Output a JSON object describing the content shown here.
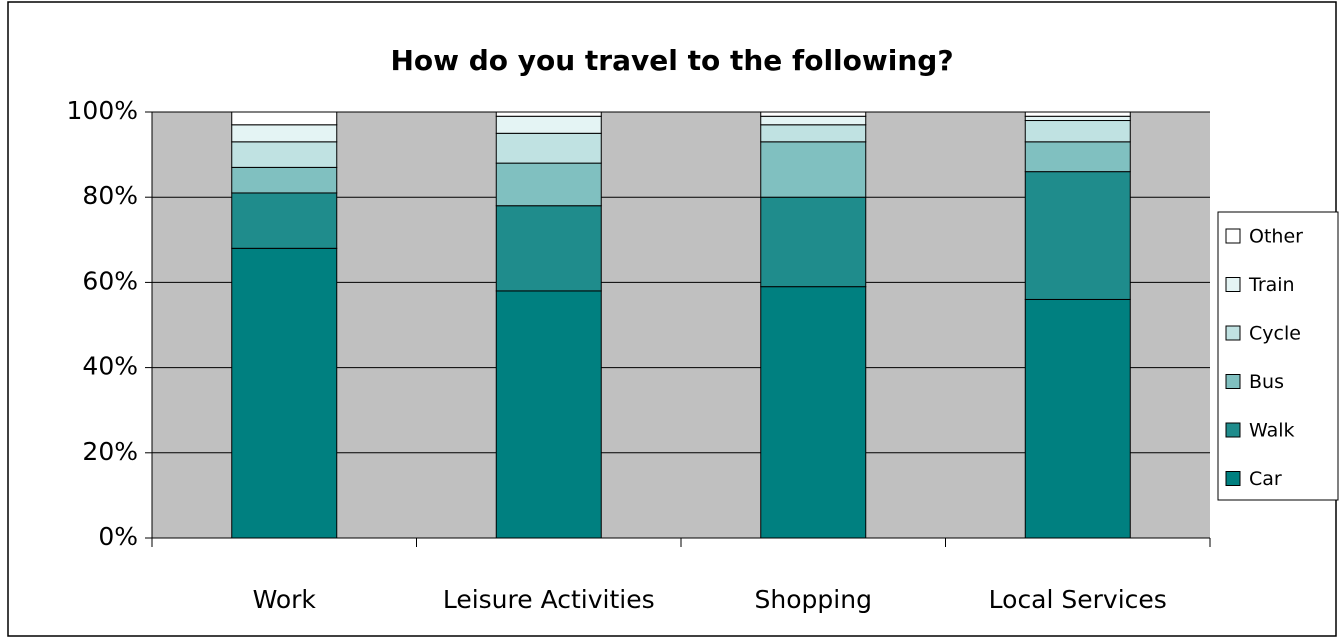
{
  "chart_data": {
    "type": "bar",
    "stacked": true,
    "title": "How do you travel to the following?",
    "categories": [
      "Work",
      "Leisure Activities",
      "Shopping",
      "Local Services"
    ],
    "series": [
      {
        "name": "Car",
        "color": "#008080",
        "values": [
          68,
          58,
          59,
          56
        ]
      },
      {
        "name": "Walk",
        "color": "#1f8c8c",
        "values": [
          13,
          20,
          21,
          30
        ]
      },
      {
        "name": "Bus",
        "color": "#80c0c0",
        "values": [
          6,
          10,
          13,
          7
        ]
      },
      {
        "name": "Cycle",
        "color": "#c0e2e2",
        "values": [
          6,
          7,
          4,
          5
        ]
      },
      {
        "name": "Train",
        "color": "#e4f4f4",
        "values": [
          4,
          4,
          2,
          1
        ]
      },
      {
        "name": "Other",
        "color": "#ffffff",
        "values": [
          3,
          1,
          1,
          1
        ]
      }
    ],
    "ylim": [
      0,
      100
    ],
    "yticks": [
      {
        "value": 0,
        "label": "0%"
      },
      {
        "value": 20,
        "label": "20%"
      },
      {
        "value": 40,
        "label": "40%"
      },
      {
        "value": 60,
        "label": "60%"
      },
      {
        "value": 80,
        "label": "80%"
      },
      {
        "value": 100,
        "label": "100%"
      }
    ],
    "grid": true,
    "legend": "right"
  }
}
